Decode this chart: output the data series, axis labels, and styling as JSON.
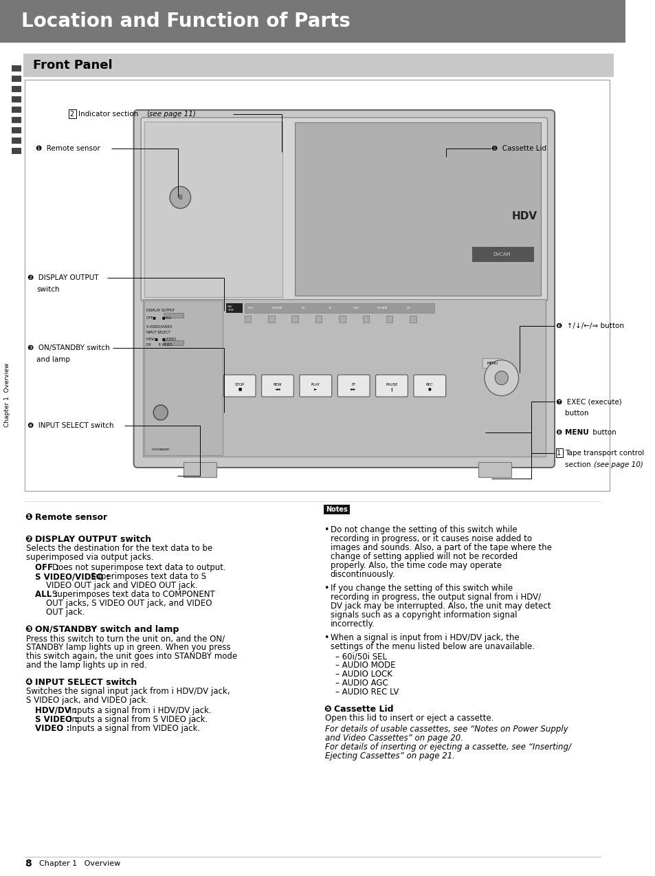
{
  "page_bg": "#ffffff",
  "header_bg": "#777777",
  "header_text": "Location and Function of Parts",
  "header_text_color": "#ffffff",
  "header_fontsize": 20,
  "subheader_bg": "#c8c8c8",
  "subheader_text": "Front Panel",
  "subheader_fontsize": 13,
  "page_num": "8",
  "chapter_text": "Chapter 1   Overview"
}
